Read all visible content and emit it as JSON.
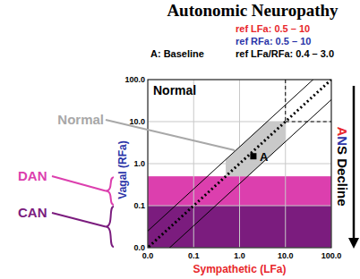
{
  "chart_data": {
    "type": "scatter",
    "title": "Autonomic Neuropathy",
    "x_label": "Sympathetic (LFa)",
    "y_label": "Vagal (RFa)",
    "x_label_color": "#e8262b",
    "y_label_color": "#2b35a8",
    "log": true,
    "grid": true,
    "xlim": [
      0.01,
      100
    ],
    "ylim": [
      0.01,
      100
    ],
    "xticks": [
      {
        "value": 0.01,
        "label": "0.0"
      },
      0.1,
      {
        "value": 1,
        "label": "1.0"
      },
      {
        "value": 10,
        "label": "10.0"
      },
      {
        "value": 100,
        "label": "100.0"
      }
    ],
    "yticks": [
      {
        "value": 0.01,
        "label": "0.0"
      },
      0.1,
      {
        "value": 1,
        "label": "1.0"
      },
      {
        "value": 10,
        "label": "10.0"
      },
      {
        "value": 100,
        "label": "100.0"
      }
    ],
    "series": [
      {
        "name": "A",
        "color": "#000000",
        "marker": "square",
        "x": [
          2.0
        ],
        "values": [
          1.5
        ]
      }
    ],
    "ref_texts": [
      {
        "text": "ref LFa:  0.5 – 10",
        "color": "#e8262b"
      },
      {
        "text": "ref RFa:  0.5 – 10",
        "color": "#2b35a8"
      },
      {
        "text": "ref LFa/RFa:  0.4 – 3.0",
        "color": "#000000"
      }
    ],
    "baseline_label": "A: Baseline",
    "plot_label": "Normal",
    "regions": {
      "normal": {
        "label": "Normal",
        "lfa": [
          0.5,
          10
        ],
        "rfa": [
          0.5,
          10
        ],
        "ratio": [
          0.4,
          3.0
        ],
        "color": "#c9c9c9",
        "label_color": "#a8a8a8"
      },
      "dan": {
        "label": "DAN",
        "rfa": [
          0.1,
          0.5
        ],
        "color": "#dc3fae"
      },
      "can": {
        "label": "CAN",
        "rfa": [
          0.01,
          0.1
        ],
        "color": "#7b1c7e"
      }
    },
    "arrow_label": [
      {
        "text": "A",
        "color": "#e8262b"
      },
      {
        "text": "N",
        "color": "#2b35a8"
      },
      {
        "text": "S",
        "color": "#000000"
      },
      {
        "text": " Decline",
        "color": "#000000"
      }
    ]
  }
}
